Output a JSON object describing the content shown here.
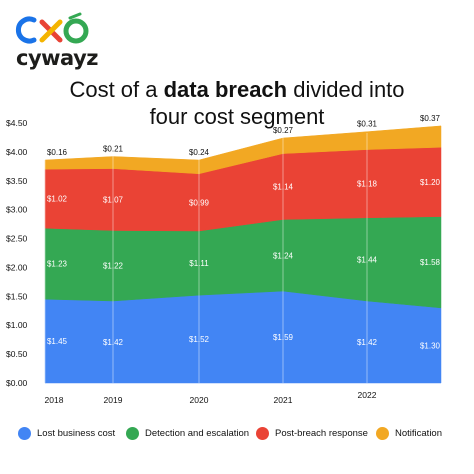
{
  "logo": {
    "wordmark": "cywayz",
    "colors": [
      "#1a73e8",
      "#e84335",
      "#f4b400",
      "#34a853"
    ]
  },
  "title": {
    "prefix": "Cost of a ",
    "bold": "data breach",
    "suffix": " divided into",
    "line2": "four cost segment"
  },
  "colors": {
    "lost": "#4285f4",
    "detection": "#34a853",
    "post": "#ea4335",
    "notification": "#f2a823"
  },
  "chart_data": {
    "type": "area",
    "stacked": true,
    "title": "Cost of a data breach divided into four cost segment",
    "x": [
      "2018",
      "2019",
      "2020",
      "2021",
      "2022",
      ""
    ],
    "series": [
      {
        "name": "Lost business cost",
        "color": "#4285f4",
        "values": [
          1.45,
          1.42,
          1.52,
          1.59,
          1.42,
          1.3
        ],
        "labels": [
          "$1.45",
          "$1.42",
          "$1.52",
          "$1.59",
          "$1.42",
          "$1.30"
        ]
      },
      {
        "name": "Detection and escalation",
        "color": "#34a853",
        "values": [
          1.23,
          1.22,
          1.11,
          1.24,
          1.44,
          1.58
        ],
        "labels": [
          "$1.23",
          "$1.22",
          "$1.11",
          "$1.24",
          "$1.44",
          "$1.58"
        ]
      },
      {
        "name": "Post-breach response",
        "color": "#ea4335",
        "values": [
          1.02,
          1.07,
          0.99,
          1.14,
          1.18,
          1.2
        ],
        "labels": [
          "$1.02",
          "$1.07",
          "$0.99",
          "$1.14",
          "$1.18",
          "$1.20"
        ]
      },
      {
        "name": "Notification",
        "color": "#f2a823",
        "values": [
          0.16,
          0.21,
          0.24,
          0.27,
          0.31,
          0.37
        ],
        "labels": [
          "$0.16",
          "$0.21",
          "$0.24",
          "$0.27",
          "$0.31",
          "$0.37"
        ]
      }
    ],
    "ylim": [
      0,
      4.5
    ],
    "yticks": [
      0,
      0.5,
      1.0,
      1.5,
      2.0,
      2.5,
      3.0,
      3.5,
      4.0,
      4.5
    ],
    "ytick_labels": [
      "$0.00",
      "$0.50",
      "$1.00",
      "$1.50",
      "$2.00",
      "$2.50",
      "$3.00",
      "$3.50",
      "$4.00",
      "$4.50"
    ],
    "grid": "vertical",
    "legend": "bottom"
  }
}
